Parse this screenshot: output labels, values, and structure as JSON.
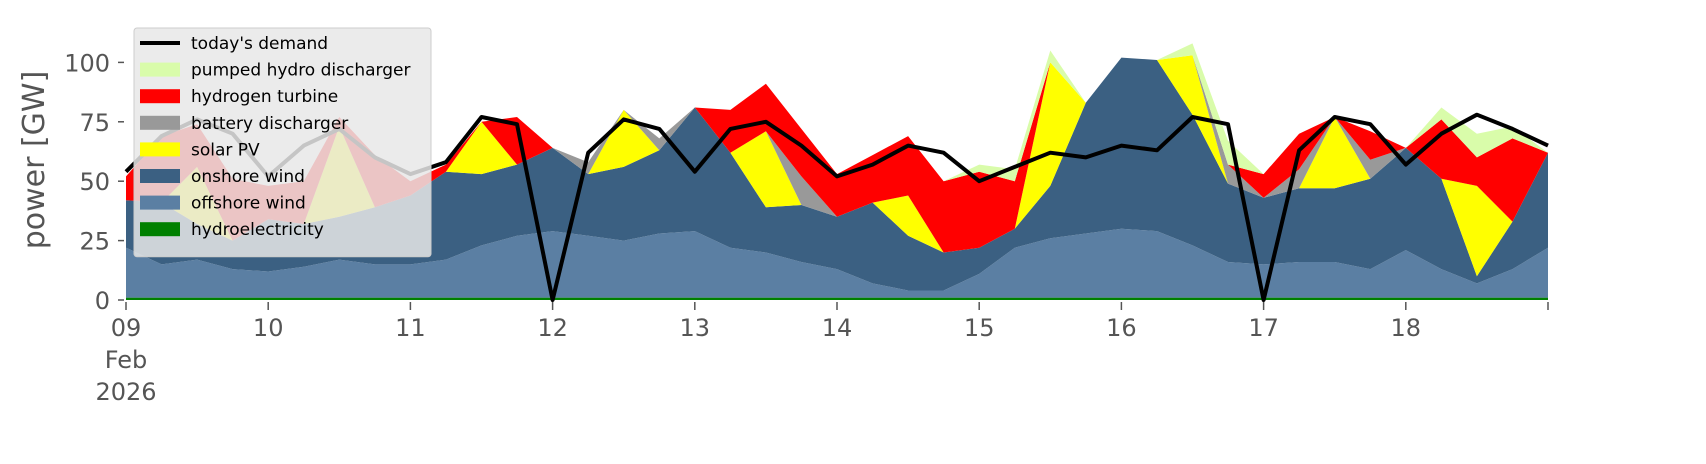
{
  "chart_data": {
    "type": "area",
    "stacked": true,
    "ylabel": "power [GW]",
    "xlabel": "",
    "ylim": [
      0,
      117
    ],
    "yticks": [
      0,
      25,
      50,
      75,
      100
    ],
    "x_start": "09 Feb 2026",
    "x_end": "19 Feb 2026",
    "x_tick_labels": [
      {
        "day": 9,
        "lines": [
          "09",
          "Feb",
          "2026"
        ]
      },
      {
        "day": 10,
        "lines": [
          "10"
        ]
      },
      {
        "day": 11,
        "lines": [
          "11"
        ]
      },
      {
        "day": 12,
        "lines": [
          "12"
        ]
      },
      {
        "day": 13,
        "lines": [
          "13"
        ]
      },
      {
        "day": 14,
        "lines": [
          "14"
        ]
      },
      {
        "day": 15,
        "lines": [
          "15"
        ]
      },
      {
        "day": 16,
        "lines": [
          "16"
        ]
      },
      {
        "day": 17,
        "lines": [
          "17"
        ]
      },
      {
        "day": 18,
        "lines": [
          "18"
        ]
      }
    ],
    "legend_position": "upper-left",
    "grid": false,
    "x": [
      "Feb 9 00:00",
      "Feb 9 06:00",
      "Feb 9 12:00",
      "Feb 9 18:00",
      "Feb 10 00:00",
      "Feb 10 06:00",
      "Feb 10 12:00",
      "Feb 10 18:00",
      "Feb 11 00:00",
      "Feb 11 06:00",
      "Feb 11 12:00",
      "Feb 11 18:00",
      "Feb 12 00:00",
      "Feb 12 06:00",
      "Feb 12 12:00",
      "Feb 12 18:00",
      "Feb 13 00:00",
      "Feb 13 06:00",
      "Feb 13 12:00",
      "Feb 13 18:00",
      "Feb 14 00:00",
      "Feb 14 06:00",
      "Feb 14 12:00",
      "Feb 14 18:00",
      "Feb 15 00:00",
      "Feb 15 06:00",
      "Feb 15 12:00",
      "Feb 15 18:00",
      "Feb 16 00:00",
      "Feb 16 06:00",
      "Feb 16 12:00",
      "Feb 16 18:00",
      "Feb 17 00:00",
      "Feb 17 06:00",
      "Feb 17 12:00",
      "Feb 17 18:00",
      "Feb 18 00:00",
      "Feb 18 06:00",
      "Feb 18 12:00",
      "Feb 18 18:00",
      "Feb 19 00:00"
    ],
    "series": [
      {
        "name": "hydroelectricity",
        "color": "#008000",
        "values": [
          1,
          1,
          1,
          1,
          1,
          1,
          1,
          1,
          1,
          1,
          1,
          1,
          1,
          1,
          1,
          1,
          1,
          1,
          1,
          1,
          1,
          1,
          1,
          1,
          1,
          1,
          1,
          1,
          1,
          1,
          1,
          1,
          1,
          1,
          1,
          1,
          1,
          1,
          1,
          1,
          1
        ]
      },
      {
        "name": "offshore wind",
        "color": "#5b7fa3",
        "values": [
          21,
          14,
          16,
          12,
          11,
          13,
          16,
          14,
          14,
          16,
          22,
          26,
          28,
          26,
          24,
          27,
          28,
          21,
          19,
          15,
          12,
          6,
          3,
          3,
          10,
          21,
          25,
          27,
          29,
          28,
          22,
          15,
          14,
          15,
          15,
          12,
          20,
          12,
          6,
          12,
          21
        ]
      },
      {
        "name": "onshore wind",
        "color": "#3b6082",
        "values": [
          20,
          26,
          15,
          12,
          22,
          18,
          18,
          24,
          29,
          37,
          30,
          30,
          35,
          26,
          31,
          35,
          52,
          40,
          19,
          24,
          22,
          34,
          23,
          16,
          11,
          8,
          22,
          55,
          72,
          72,
          55,
          33,
          28,
          31,
          31,
          38,
          43,
          38,
          3,
          20,
          40
        ]
      },
      {
        "name": "solar PV",
        "color": "#ffff00",
        "values": [
          0,
          0,
          24,
          0,
          0,
          0,
          38,
          0,
          0,
          0,
          22,
          0,
          0,
          0,
          24,
          0,
          0,
          0,
          32,
          0,
          0,
          0,
          17,
          0,
          0,
          0,
          52,
          0,
          0,
          0,
          25,
          0,
          0,
          0,
          30,
          0,
          0,
          0,
          38,
          0,
          0
        ]
      },
      {
        "name": "battery discharger",
        "color": "#999999",
        "values": [
          0,
          0,
          0,
          0,
          0,
          0,
          0,
          0,
          0,
          0,
          0,
          0,
          0,
          5,
          0,
          5,
          0,
          0,
          0,
          12,
          0,
          0,
          0,
          0,
          0,
          0,
          0,
          0,
          0,
          0,
          0,
          8,
          0,
          8,
          0,
          8,
          0,
          0,
          0,
          0,
          0
        ]
      },
      {
        "name": "hydrogen turbine",
        "color": "#ff0000",
        "values": [
          10,
          28,
          18,
          26,
          14,
          18,
          4,
          22,
          6,
          3,
          0,
          20,
          0,
          0,
          0,
          0,
          0,
          18,
          20,
          20,
          18,
          20,
          25,
          30,
          32,
          20,
          0,
          0,
          0,
          0,
          0,
          0,
          10,
          15,
          0,
          12,
          0,
          25,
          12,
          35,
          0
        ]
      },
      {
        "name": "pumped hydro discharger",
        "color": "#d9fcaa",
        "values": [
          0,
          0,
          0,
          0,
          0,
          0,
          0,
          0,
          0,
          0,
          0,
          0,
          0,
          0,
          0,
          0,
          0,
          0,
          0,
          0,
          0,
          0,
          0,
          0,
          3,
          5,
          5,
          0,
          0,
          0,
          5,
          10,
          0,
          0,
          0,
          0,
          0,
          5,
          10,
          5,
          0
        ]
      }
    ],
    "demand": {
      "name": "today's demand",
      "color": "#000000",
      "values": [
        54,
        69,
        76,
        70,
        52,
        65,
        72,
        60,
        53,
        58,
        77,
        74,
        null,
        62,
        76,
        72,
        54,
        72,
        75,
        65,
        52,
        57,
        65,
        62,
        50,
        56,
        62,
        60,
        65,
        63,
        77,
        74,
        null,
        63,
        77,
        74,
        57,
        70,
        78,
        72,
        65
      ]
    }
  }
}
